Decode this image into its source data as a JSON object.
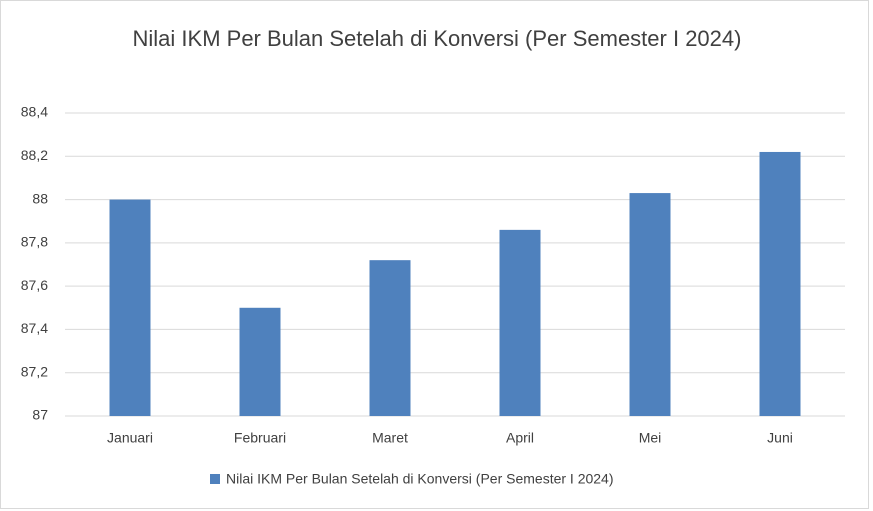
{
  "chart_data": {
    "type": "bar",
    "title": "Nilai IKM Per Bulan Setelah di Konversi (Per Semester I 2024)",
    "categories": [
      "Januari",
      "Februari",
      "Maret",
      "April",
      "Mei",
      "Juni"
    ],
    "series": [
      {
        "name": "Nilai IKM Per Bulan Setelah di Konversi (Per Semester I 2024)",
        "color": "#4f81bd",
        "values": [
          88.0,
          87.5,
          87.72,
          87.86,
          88.03,
          88.22
        ]
      }
    ],
    "ylim": [
      87,
      88.4
    ],
    "yticks": [
      87,
      {
        "value": 87.2,
        "label": "87,2"
      },
      {
        "value": 87.4,
        "label": "87,4"
      },
      {
        "value": 87.6,
        "label": "87,6"
      },
      {
        "value": 87.8,
        "label": "87,8"
      },
      88,
      {
        "value": 88.2,
        "label": "88,2"
      },
      {
        "value": 88.4,
        "label": "88,4"
      }
    ],
    "grid": true,
    "legend": "bottom"
  }
}
